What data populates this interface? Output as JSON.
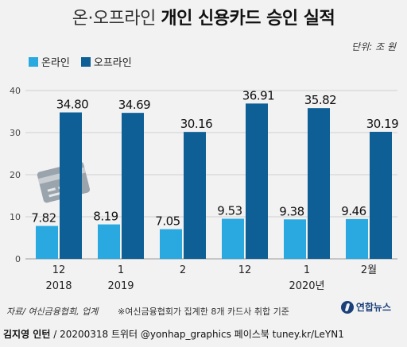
{
  "title": {
    "part1": "온·오프라인",
    "part2": "개인 신용카드 승인 실적"
  },
  "unit": "단위: 조 원",
  "legend": [
    {
      "name": "온라인",
      "color": "#29a9df"
    },
    {
      "name": "오프라인",
      "color": "#0e5f96"
    }
  ],
  "footer": {
    "source": "자료/ 여신금융협회, 업계",
    "note": "※여신금융협회가 집계한 8개 카드사 취합 기준",
    "logo": "연합뉴스",
    "author": "김지영 인턴",
    "credit_rest": "/ 20200318 트위터 @yonhap_graphics 페이스북 tuney.kr/LeYN1"
  },
  "decor": {
    "card_icon": "credit-card-icon"
  },
  "chart_data": {
    "type": "bar",
    "categories": [
      "12",
      "1",
      "2",
      "12",
      "1",
      "2월"
    ],
    "year_labels": [
      "2018",
      "2019",
      "",
      "",
      "2020년",
      ""
    ],
    "series": [
      {
        "name": "온라인",
        "color": "#29a9df",
        "values": [
          7.82,
          8.19,
          7.05,
          9.53,
          9.38,
          9.46
        ],
        "labels": [
          "7.82",
          "8.19",
          "7.05",
          "9.53",
          "9.38",
          "9.46"
        ]
      },
      {
        "name": "오프라인",
        "color": "#0e5f96",
        "values": [
          34.8,
          34.69,
          30.16,
          36.91,
          35.82,
          30.19
        ],
        "labels": [
          "34.80",
          "34.69",
          "30.16",
          "36.91",
          "35.82",
          "30.19"
        ]
      }
    ],
    "yticks": [
      "0",
      "10",
      "20",
      "30",
      "40"
    ],
    "ylim": [
      0,
      40
    ],
    "grid": true,
    "legend_position": "top-left"
  }
}
